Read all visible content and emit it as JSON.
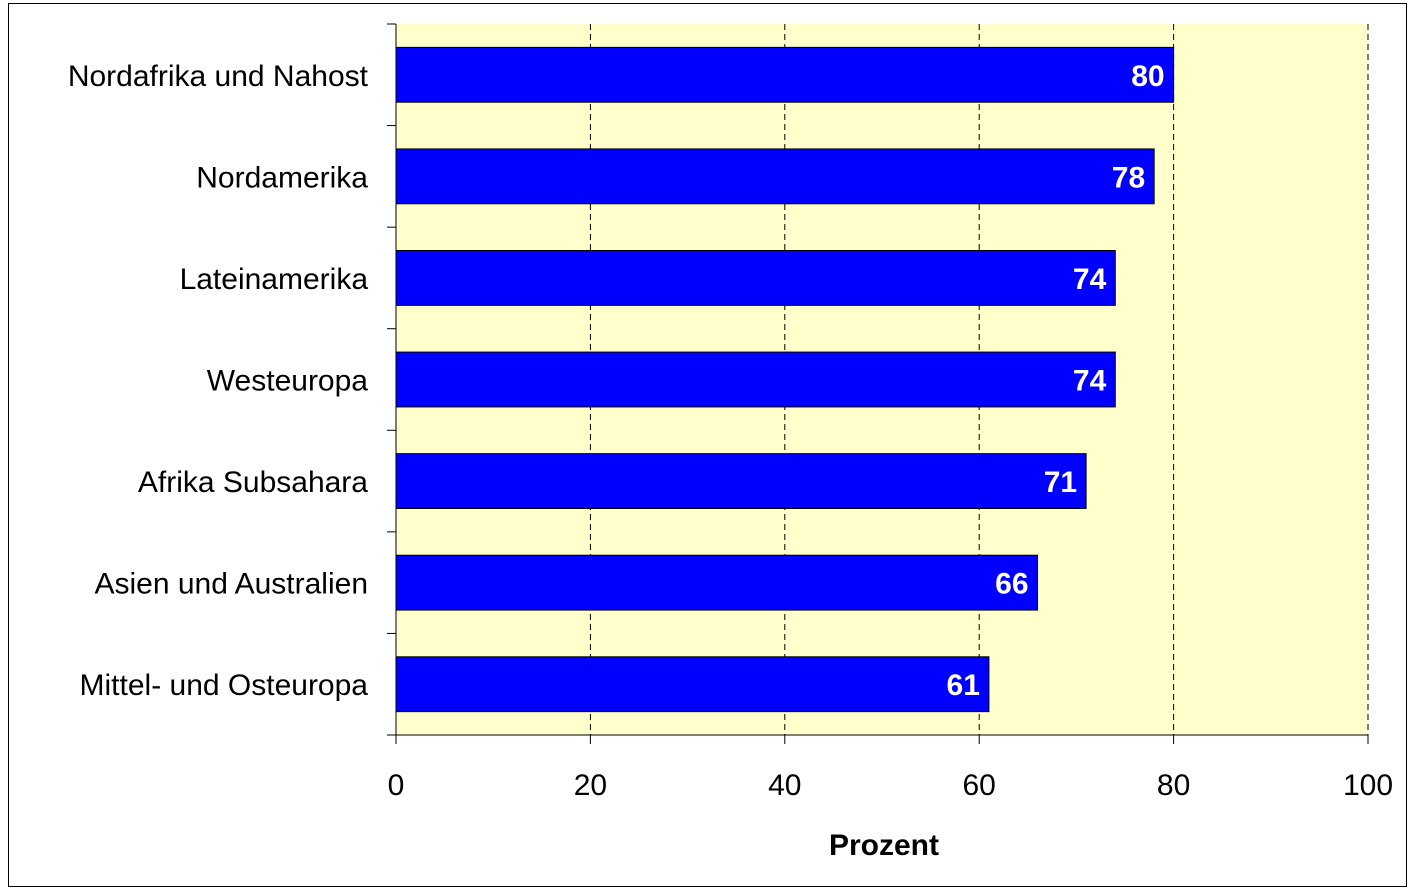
{
  "chart_data": {
    "type": "bar",
    "orientation": "horizontal",
    "categories": [
      "Nordafrika und Nahost",
      "Nordamerika",
      "Lateinamerika",
      "Westeuropa",
      "Afrika Subsahara",
      "Asien und Australien",
      "Mittel- und Osteuropa"
    ],
    "values": [
      80,
      78,
      74,
      74,
      71,
      66,
      61
    ],
    "data_labels": [
      "80",
      "78",
      "74",
      "74",
      "71",
      "66",
      "61"
    ],
    "title": "",
    "xlabel": "Prozent",
    "ylabel": "",
    "xlim": [
      0,
      100
    ],
    "xticks": [
      0,
      20,
      40,
      60,
      80,
      100
    ],
    "xtick_labels": [
      "0",
      "20",
      "40",
      "60",
      "80",
      "100"
    ],
    "grid": "vertical dashed",
    "legend": "none",
    "colors": {
      "bar_fill": "#0000ff",
      "bar_stroke": "#000000",
      "plot_background": "#ffffcc",
      "gridline": "#000000",
      "data_label": "#ffffff"
    }
  }
}
